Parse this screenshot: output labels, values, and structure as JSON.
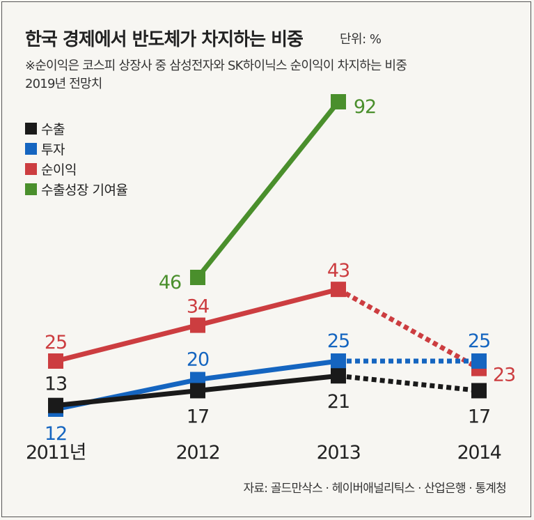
{
  "title": "한국 경제에서 반도체가 차지하는 비중",
  "unit": "단위: %",
  "subtitle_lines": [
    "※순이익은 코스피 상장사 중 삼성전자와 SK하이닉스 순이익이 차지하는 비중",
    "2019년 전망치"
  ],
  "source": "자료: 골드만삭스 · 헤이버애널리틱스 · 산업은행 · 통계청",
  "chart_data": {
    "type": "line",
    "categories": [
      "2011년",
      "2012",
      "2013",
      "2014"
    ],
    "series": [
      {
        "name": "수출",
        "color": "#1a1a1a",
        "values": [
          13,
          17,
          21,
          17
        ],
        "labels": [
          "13",
          "17",
          "21",
          "17"
        ],
        "dashed_last_segment": true
      },
      {
        "name": "투자",
        "color": "#1565c0",
        "values": [
          12,
          20,
          25,
          25
        ],
        "labels": [
          "12",
          "20",
          "25",
          "25"
        ],
        "dashed_last_segment": true
      },
      {
        "name": "순이익",
        "color": "#cc3d40",
        "values": [
          25,
          34,
          43,
          23
        ],
        "labels": [
          "25",
          "34",
          "43",
          "23"
        ],
        "dashed_last_segment": true
      },
      {
        "name": "수출성장 기여율",
        "color": "#4a8f2c",
        "values": [
          null,
          46,
          92,
          null
        ],
        "labels": [
          null,
          "46",
          "92",
          null
        ],
        "dashed_last_segment": false
      }
    ],
    "legend_position": "top-left",
    "grid": false
  }
}
